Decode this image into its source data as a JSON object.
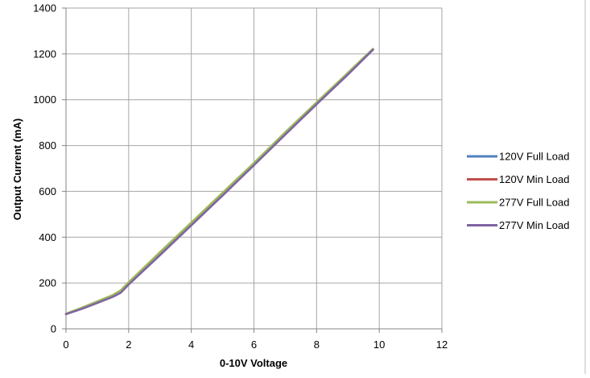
{
  "chart_data": {
    "type": "line",
    "title": "",
    "xlabel": "0-10V Voltage",
    "ylabel": "Output Current (mA)",
    "xlim": [
      0,
      12
    ],
    "ylim": [
      0,
      1400
    ],
    "xticks": [
      0,
      2,
      4,
      6,
      8,
      10,
      12
    ],
    "yticks": [
      0,
      200,
      400,
      600,
      800,
      1000,
      1200,
      1400
    ],
    "grid": true,
    "legend_position": "right",
    "series": [
      {
        "name": "120V Full Load",
        "color": "#4F81BD",
        "x": [
          0,
          0.5,
          1.0,
          1.5,
          1.75,
          2.0,
          3.0,
          4.0,
          5.0,
          6.0,
          7.0,
          8.0,
          9.0,
          9.8
        ],
        "y": [
          65,
          90,
          118,
          145,
          165,
          200,
          330,
          460,
          590,
          720,
          855,
          985,
          1115,
          1220
        ]
      },
      {
        "name": "120V Min Load",
        "color": "#C0504D",
        "x": [
          0,
          0.5,
          1.0,
          1.5,
          1.75,
          2.0,
          3.0,
          4.0,
          5.0,
          6.0,
          7.0,
          8.0,
          9.0,
          9.8
        ],
        "y": [
          65,
          89,
          116,
          143,
          162,
          197,
          327,
          457,
          587,
          718,
          852,
          983,
          1113,
          1219
        ]
      },
      {
        "name": "277V Full Load",
        "color": "#9BBB59",
        "x": [
          0,
          0.5,
          1.0,
          1.5,
          1.75,
          2.0,
          3.0,
          4.0,
          5.0,
          6.0,
          7.0,
          8.0,
          9.0,
          9.8
        ],
        "y": [
          66,
          92,
          120,
          148,
          168,
          203,
          335,
          464,
          594,
          724,
          858,
          988,
          1118,
          1222
        ]
      },
      {
        "name": "277V Min Load",
        "color": "#8064A2",
        "x": [
          0,
          0.5,
          1.0,
          1.5,
          1.75,
          2.0,
          3.0,
          4.0,
          5.0,
          6.0,
          7.0,
          8.0,
          9.0,
          9.8
        ],
        "y": [
          64,
          87,
          113,
          140,
          158,
          193,
          322,
          452,
          582,
          714,
          848,
          980,
          1110,
          1218
        ]
      }
    ]
  }
}
